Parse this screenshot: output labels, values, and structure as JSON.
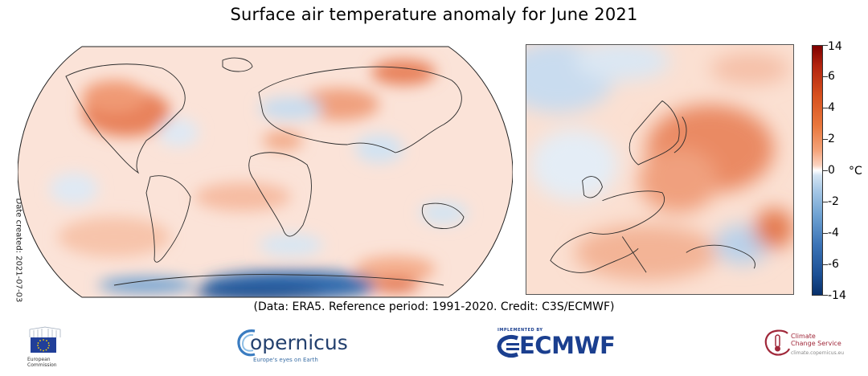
{
  "title": "Surface air temperature anomaly for June 2021",
  "date_created": "Date created: 2021-07-03",
  "colorbar": {
    "ticks": [
      "14",
      "6",
      "4",
      "2",
      "0",
      "-2",
      "-4",
      "-6",
      "-14"
    ],
    "unit": "°C",
    "colors": [
      "#7f0000",
      "#d6501e",
      "#f4a37a",
      "#ffffff",
      "#a7c8e6",
      "#3b73b6",
      "#08306b"
    ]
  },
  "credit": "(Data: ERA5.  Reference period: 1991-2020.  Credit: C3S/ECMWF)",
  "logos": {
    "eu_line1": "European",
    "eu_line2": "Commission",
    "copernicus_word": "opernicus",
    "copernicus_tagline": "Europe's eyes on Earth",
    "ecmwf_top": "IMPLEMENTED BY",
    "ecmwf_word": "ECMWF",
    "c3s_line1": "Climate",
    "c3s_line2": "Change Service",
    "c3s_line3": "climate.copernicus.eu"
  }
}
